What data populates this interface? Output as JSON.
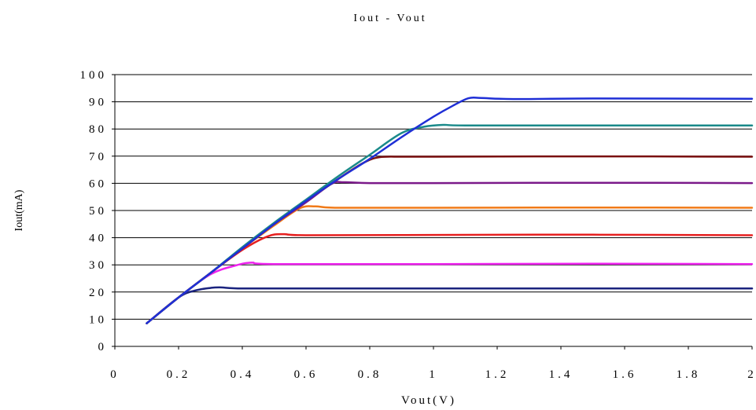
{
  "chart_data": {
    "type": "line",
    "title": "Iout - Vout",
    "xlabel": "Vout(V)",
    "ylabel": "Iout(mA)",
    "xlim": [
      0,
      2
    ],
    "ylim": [
      0,
      100
    ],
    "x_ticks": [
      {
        "value": 0,
        "label": "0"
      },
      {
        "value": 0.2,
        "label": "0.2"
      },
      {
        "value": 0.4,
        "label": "0.4"
      },
      {
        "value": 0.6,
        "label": "0.6"
      },
      {
        "value": 0.8,
        "label": "0.8"
      },
      {
        "value": 1,
        "label": "1"
      },
      {
        "value": 1.2,
        "label": "1.2"
      },
      {
        "value": 1.4,
        "label": "1.4"
      },
      {
        "value": 1.6,
        "label": "1.6"
      },
      {
        "value": 1.8,
        "label": "1.8"
      },
      {
        "value": 2,
        "label": "2"
      }
    ],
    "y_ticks": [
      {
        "value": 0,
        "label": "0"
      },
      {
        "value": 10,
        "label": "10"
      },
      {
        "value": 20,
        "label": "20"
      },
      {
        "value": 30,
        "label": "30"
      },
      {
        "value": 40,
        "label": "40"
      },
      {
        "value": 50,
        "label": "50"
      },
      {
        "value": 60,
        "label": "60"
      },
      {
        "value": 70,
        "label": "70"
      },
      {
        "value": 80,
        "label": "80"
      },
      {
        "value": 90,
        "label": "90"
      },
      {
        "value": 100,
        "label": "100"
      }
    ],
    "grid": true,
    "legend": "none",
    "series": [
      {
        "color": "#1a237e",
        "points": [
          [
            0.1,
            8.5
          ],
          [
            0.2,
            18
          ],
          [
            0.25,
            20.5
          ],
          [
            0.3,
            21.5
          ],
          [
            0.33,
            21.7
          ],
          [
            0.4,
            21.3
          ],
          [
            0.6,
            21.3
          ],
          [
            1.0,
            21.3
          ],
          [
            1.5,
            21.3
          ],
          [
            2.0,
            21.3
          ]
        ]
      },
      {
        "color": "#ee22ee",
        "points": [
          [
            0.1,
            8.5
          ],
          [
            0.2,
            18
          ],
          [
            0.3,
            26.5
          ],
          [
            0.38,
            29.8
          ],
          [
            0.43,
            30.8
          ],
          [
            0.5,
            30.3
          ],
          [
            1.0,
            30.3
          ],
          [
            1.5,
            30.4
          ],
          [
            2.0,
            30.3
          ]
        ]
      },
      {
        "color": "#e62020",
        "points": [
          [
            0.1,
            8.5
          ],
          [
            0.2,
            18
          ],
          [
            0.3,
            27
          ],
          [
            0.4,
            35.5
          ],
          [
            0.48,
            40.5
          ],
          [
            0.53,
            41.3
          ],
          [
            0.6,
            40.9
          ],
          [
            1.0,
            41.0
          ],
          [
            1.5,
            41.1
          ],
          [
            2.0,
            40.9
          ]
        ]
      },
      {
        "color": "#f07a18",
        "points": [
          [
            0.1,
            8.5
          ],
          [
            0.2,
            18
          ],
          [
            0.3,
            27
          ],
          [
            0.4,
            36
          ],
          [
            0.5,
            44.5
          ],
          [
            0.58,
            50.8
          ],
          [
            0.63,
            51.5
          ],
          [
            0.7,
            51.0
          ],
          [
            1.0,
            51.0
          ],
          [
            1.5,
            51.1
          ],
          [
            2.0,
            51.0
          ]
        ]
      },
      {
        "color": "#7b1a8a",
        "points": [
          [
            0.1,
            8.5
          ],
          [
            0.2,
            18
          ],
          [
            0.3,
            27
          ],
          [
            0.4,
            36
          ],
          [
            0.5,
            45
          ],
          [
            0.6,
            53
          ],
          [
            0.68,
            59.8
          ],
          [
            0.72,
            60.4
          ],
          [
            0.8,
            60.1
          ],
          [
            1.0,
            60.1
          ],
          [
            1.5,
            60.2
          ],
          [
            2.0,
            60.1
          ]
        ]
      },
      {
        "color": "#7a1010",
        "points": [
          [
            0.1,
            8.5
          ],
          [
            0.2,
            18
          ],
          [
            0.3,
            27
          ],
          [
            0.4,
            36
          ],
          [
            0.5,
            45
          ],
          [
            0.6,
            53.5
          ],
          [
            0.7,
            61.5
          ],
          [
            0.78,
            67.5
          ],
          [
            0.83,
            69.6
          ],
          [
            0.9,
            69.8
          ],
          [
            1.0,
            69.8
          ],
          [
            1.5,
            69.9
          ],
          [
            2.0,
            69.8
          ]
        ]
      },
      {
        "color": "#1a8a8a",
        "points": [
          [
            0.1,
            8.5
          ],
          [
            0.2,
            18
          ],
          [
            0.3,
            27
          ],
          [
            0.4,
            36.5
          ],
          [
            0.5,
            45.5
          ],
          [
            0.6,
            54
          ],
          [
            0.7,
            62.5
          ],
          [
            0.8,
            70.5
          ],
          [
            0.9,
            78.5
          ],
          [
            0.97,
            80.8
          ],
          [
            1.03,
            81.5
          ],
          [
            1.1,
            81.3
          ],
          [
            1.5,
            81.3
          ],
          [
            2.0,
            81.3
          ]
        ]
      },
      {
        "color": "#1f2fd6",
        "points": [
          [
            0.1,
            8.5
          ],
          [
            0.2,
            18
          ],
          [
            0.3,
            27
          ],
          [
            0.4,
            36
          ],
          [
            0.5,
            45
          ],
          [
            0.6,
            53.5
          ],
          [
            0.7,
            61.5
          ],
          [
            0.8,
            69
          ],
          [
            0.9,
            77
          ],
          [
            1.0,
            84.5
          ],
          [
            1.06,
            88.5
          ],
          [
            1.11,
            91.3
          ],
          [
            1.15,
            91.4
          ],
          [
            1.25,
            91.0
          ],
          [
            1.5,
            91.2
          ],
          [
            2.0,
            91.1
          ]
        ]
      }
    ]
  }
}
